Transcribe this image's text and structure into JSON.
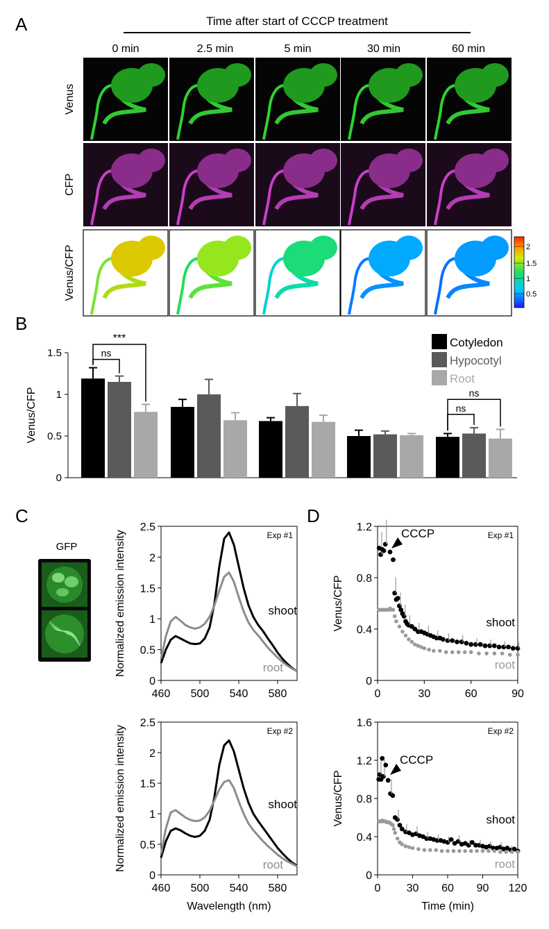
{
  "panel_labels": {
    "A": "A",
    "B": "B",
    "C": "C",
    "D": "D"
  },
  "panelA": {
    "header": "Time after start of CCCP treatment",
    "times": [
      "0 min",
      "2.5 min",
      "5 min",
      "30 min",
      "60 min"
    ],
    "rows": [
      "Venus",
      "CFP",
      "Venus/CFP"
    ],
    "colorbar_ticks": [
      "2",
      "1.5",
      "1",
      "0.5"
    ],
    "colors": {
      "venus": "#2fd22f",
      "cfp": "#c83fc8",
      "background": "#050505"
    },
    "ratio_levels": [
      1.9,
      1.6,
      1.2,
      0.8,
      0.75
    ]
  },
  "panelC_gfp_label": "GFP",
  "chart_data": [
    {
      "id": "B",
      "type": "bar",
      "ylabel": "Venus/CFP",
      "ylim": [
        0,
        1.5
      ],
      "yticks": [
        "0",
        "0.5",
        "1",
        "1.5"
      ],
      "legend": [
        "Cotyledon",
        "Hypocotyl",
        "Root"
      ],
      "legend_position": "top-right",
      "series_colors": [
        "#000000",
        "#5a5a5a",
        "#a8a8a8"
      ],
      "series": [
        {
          "name": "Cotyledon",
          "values": [
            1.19,
            0.85,
            0.68,
            0.5,
            0.49
          ],
          "errors": [
            0.13,
            0.09,
            0.04,
            0.07,
            0.04
          ]
        },
        {
          "name": "Hypocotyl",
          "values": [
            1.15,
            1.0,
            0.86,
            0.52,
            0.53
          ],
          "errors": [
            0.07,
            0.18,
            0.15,
            0.04,
            0.07
          ]
        },
        {
          "name": "Root",
          "values": [
            0.79,
            0.69,
            0.67,
            0.51,
            0.47
          ],
          "errors": [
            0.09,
            0.09,
            0.08,
            0.02,
            0.11
          ]
        }
      ],
      "significance": [
        {
          "group": 0,
          "from": 0,
          "to": 1,
          "label": "ns",
          "y": 1.42
        },
        {
          "group": 0,
          "from": 0,
          "to": 2,
          "label": "***",
          "y": 1.6
        },
        {
          "group": 4,
          "from": 0,
          "to": 1,
          "label": "ns",
          "y": 0.76
        },
        {
          "group": 4,
          "from": 0,
          "to": 2,
          "label": "ns",
          "y": 0.94
        }
      ]
    },
    {
      "id": "C1",
      "type": "line",
      "annotation": "Exp #1",
      "ylabel": "Normalized emission intensity",
      "xlim": [
        460,
        600
      ],
      "ylim": [
        0,
        2.5
      ],
      "xticks": [
        "460",
        "500",
        "540",
        "580"
      ],
      "yticks": [
        "0",
        "0.5",
        "1",
        "1.5",
        "2",
        "2.5"
      ],
      "series": [
        {
          "name": "shoot",
          "color": "#000000",
          "x": [
            460,
            465,
            470,
            475,
            480,
            485,
            490,
            495,
            500,
            505,
            510,
            515,
            520,
            525,
            530,
            535,
            540,
            545,
            550,
            555,
            560,
            565,
            570,
            575,
            580,
            585,
            590,
            595,
            600
          ],
          "y": [
            0.28,
            0.5,
            0.66,
            0.72,
            0.68,
            0.64,
            0.6,
            0.59,
            0.6,
            0.68,
            0.86,
            1.25,
            1.85,
            2.3,
            2.4,
            2.2,
            1.85,
            1.5,
            1.22,
            1.03,
            0.9,
            0.8,
            0.68,
            0.57,
            0.45,
            0.35,
            0.27,
            0.2,
            0.15
          ]
        },
        {
          "name": "root",
          "color": "#8c8c8c",
          "x": [
            460,
            465,
            470,
            475,
            480,
            485,
            490,
            495,
            500,
            505,
            510,
            515,
            520,
            525,
            530,
            535,
            540,
            545,
            550,
            555,
            560,
            565,
            570,
            575,
            580,
            585,
            590,
            595,
            600
          ],
          "y": [
            0.35,
            0.72,
            0.96,
            1.03,
            0.97,
            0.9,
            0.86,
            0.84,
            0.86,
            0.92,
            1.03,
            1.22,
            1.46,
            1.68,
            1.75,
            1.6,
            1.35,
            1.12,
            0.94,
            0.82,
            0.73,
            0.63,
            0.53,
            0.45,
            0.37,
            0.3,
            0.24,
            0.19,
            0.15
          ]
        }
      ]
    },
    {
      "id": "C2",
      "type": "line",
      "annotation": "Exp #2",
      "ylabel": "Normalized emission intensity",
      "xlabel": "Wavelength (nm)",
      "xlim": [
        460,
        600
      ],
      "ylim": [
        0,
        2.5
      ],
      "xticks": [
        "460",
        "500",
        "540",
        "580"
      ],
      "yticks": [
        "0",
        "0.5",
        "1",
        "1.5",
        "2",
        "2.5"
      ],
      "series": [
        {
          "name": "shoot",
          "color": "#000000",
          "x": [
            460,
            465,
            470,
            475,
            480,
            485,
            490,
            495,
            500,
            505,
            510,
            515,
            520,
            525,
            530,
            535,
            540,
            545,
            550,
            555,
            560,
            565,
            570,
            575,
            580,
            585,
            590,
            595,
            600
          ],
          "y": [
            0.28,
            0.55,
            0.72,
            0.76,
            0.73,
            0.68,
            0.64,
            0.62,
            0.64,
            0.72,
            0.9,
            1.28,
            1.8,
            2.12,
            2.2,
            2.02,
            1.72,
            1.42,
            1.18,
            1.0,
            0.88,
            0.77,
            0.66,
            0.55,
            0.44,
            0.35,
            0.27,
            0.2,
            0.15
          ]
        },
        {
          "name": "root",
          "color": "#8c8c8c",
          "x": [
            460,
            465,
            470,
            475,
            480,
            485,
            490,
            495,
            500,
            505,
            510,
            515,
            520,
            525,
            530,
            535,
            540,
            545,
            550,
            555,
            560,
            565,
            570,
            575,
            580,
            585,
            590,
            595,
            600
          ],
          "y": [
            0.34,
            0.76,
            1.02,
            1.06,
            1.0,
            0.94,
            0.9,
            0.88,
            0.89,
            0.94,
            1.05,
            1.22,
            1.4,
            1.52,
            1.55,
            1.42,
            1.2,
            1.0,
            0.84,
            0.73,
            0.64,
            0.55,
            0.47,
            0.4,
            0.33,
            0.27,
            0.22,
            0.18,
            0.14
          ]
        }
      ]
    },
    {
      "id": "D1",
      "type": "scatter",
      "annotation": "Exp #1",
      "arrow_label": "CCCP",
      "ylabel": "Venus/CFP",
      "xlim": [
        0,
        90
      ],
      "ylim": [
        0,
        1.2
      ],
      "xticks": [
        "0",
        "30",
        "60",
        "90"
      ],
      "yticks": [
        "0",
        "0.4",
        "0.8",
        "1.2"
      ],
      "series": [
        {
          "name": "shoot",
          "color": "#000000",
          "x": [
            1,
            2,
            3,
            4,
            5,
            8,
            10,
            11,
            12,
            13,
            14,
            15,
            16,
            17,
            18,
            19,
            20,
            22,
            24,
            26,
            28,
            30,
            32,
            34,
            36,
            38,
            40,
            42,
            45,
            48,
            51,
            54,
            57,
            60,
            63,
            66,
            69,
            72,
            75,
            78,
            81,
            84,
            87,
            90
          ],
          "y": [
            1.03,
            0.98,
            1.02,
            1.01,
            1.06,
            1.0,
            0.94,
            0.68,
            0.63,
            0.64,
            0.58,
            0.55,
            0.52,
            0.5,
            0.46,
            0.44,
            0.43,
            0.42,
            0.4,
            0.38,
            0.38,
            0.37,
            0.36,
            0.35,
            0.34,
            0.33,
            0.33,
            0.32,
            0.31,
            0.31,
            0.3,
            0.3,
            0.29,
            0.28,
            0.28,
            0.28,
            0.27,
            0.27,
            0.27,
            0.26,
            0.26,
            0.26,
            0.25,
            0.25
          ]
        },
        {
          "name": "root",
          "color": "#9a9a9a",
          "x": [
            1,
            2,
            3,
            4,
            5,
            6,
            7,
            8,
            9,
            10,
            11,
            12,
            14,
            16,
            18,
            20,
            22,
            24,
            26,
            28,
            30,
            33,
            36,
            40,
            44,
            48,
            52,
            56,
            60,
            65,
            70,
            75,
            80,
            85,
            90
          ],
          "y": [
            0.55,
            0.55,
            0.55,
            0.55,
            0.55,
            0.55,
            0.55,
            0.56,
            0.55,
            0.55,
            0.5,
            0.46,
            0.42,
            0.38,
            0.35,
            0.32,
            0.3,
            0.28,
            0.27,
            0.26,
            0.25,
            0.24,
            0.23,
            0.23,
            0.22,
            0.22,
            0.22,
            0.22,
            0.22,
            0.21,
            0.21,
            0.21,
            0.21,
            0.2,
            0.2
          ]
        }
      ]
    },
    {
      "id": "D2",
      "type": "scatter",
      "annotation": "Exp #2",
      "arrow_label": "CCCP",
      "ylabel": "Venus/CFP",
      "xlabel": "Time (min)",
      "xlim": [
        0,
        120
      ],
      "ylim": [
        0,
        1.6
      ],
      "xticks": [
        "0",
        "30",
        "60",
        "90",
        "120"
      ],
      "yticks": [
        "0",
        "0.4",
        "0.8",
        "1.2",
        "1.6"
      ],
      "series": [
        {
          "name": "shoot",
          "color": "#000000",
          "x": [
            1,
            2,
            3,
            4,
            5,
            7,
            9,
            11,
            13,
            15,
            17,
            19,
            21,
            24,
            27,
            30,
            33,
            36,
            39,
            42,
            45,
            48,
            51,
            54,
            57,
            60,
            63,
            66,
            69,
            72,
            75,
            78,
            81,
            84,
            87,
            90,
            93,
            96,
            99,
            102,
            105,
            108,
            111,
            114,
            117,
            120
          ],
          "y": [
            1.0,
            1.05,
            1.0,
            1.22,
            1.03,
            1.15,
            0.99,
            0.85,
            0.83,
            0.6,
            0.58,
            0.52,
            0.48,
            0.45,
            0.44,
            0.42,
            0.43,
            0.41,
            0.4,
            0.38,
            0.38,
            0.37,
            0.36,
            0.36,
            0.35,
            0.34,
            0.37,
            0.33,
            0.35,
            0.32,
            0.33,
            0.31,
            0.34,
            0.31,
            0.31,
            0.3,
            0.29,
            0.3,
            0.28,
            0.28,
            0.29,
            0.27,
            0.28,
            0.26,
            0.27,
            0.25
          ]
        },
        {
          "name": "root",
          "color": "#9a9a9a",
          "x": [
            1,
            2,
            3,
            4,
            5,
            6,
            7,
            8,
            9,
            10,
            11,
            12,
            13,
            14,
            15,
            17,
            19,
            21,
            24,
            27,
            30,
            35,
            40,
            45,
            50,
            55,
            60,
            65,
            70,
            75,
            80,
            85,
            90,
            95,
            100,
            105,
            110,
            115,
            120
          ],
          "y": [
            0.56,
            0.56,
            0.56,
            0.57,
            0.56,
            0.56,
            0.56,
            0.55,
            0.55,
            0.55,
            0.54,
            0.53,
            0.52,
            0.48,
            0.44,
            0.38,
            0.34,
            0.32,
            0.3,
            0.29,
            0.28,
            0.27,
            0.26,
            0.26,
            0.26,
            0.25,
            0.25,
            0.25,
            0.25,
            0.25,
            0.25,
            0.25,
            0.25,
            0.25,
            0.25,
            0.24,
            0.24,
            0.24,
            0.24
          ]
        }
      ]
    }
  ]
}
